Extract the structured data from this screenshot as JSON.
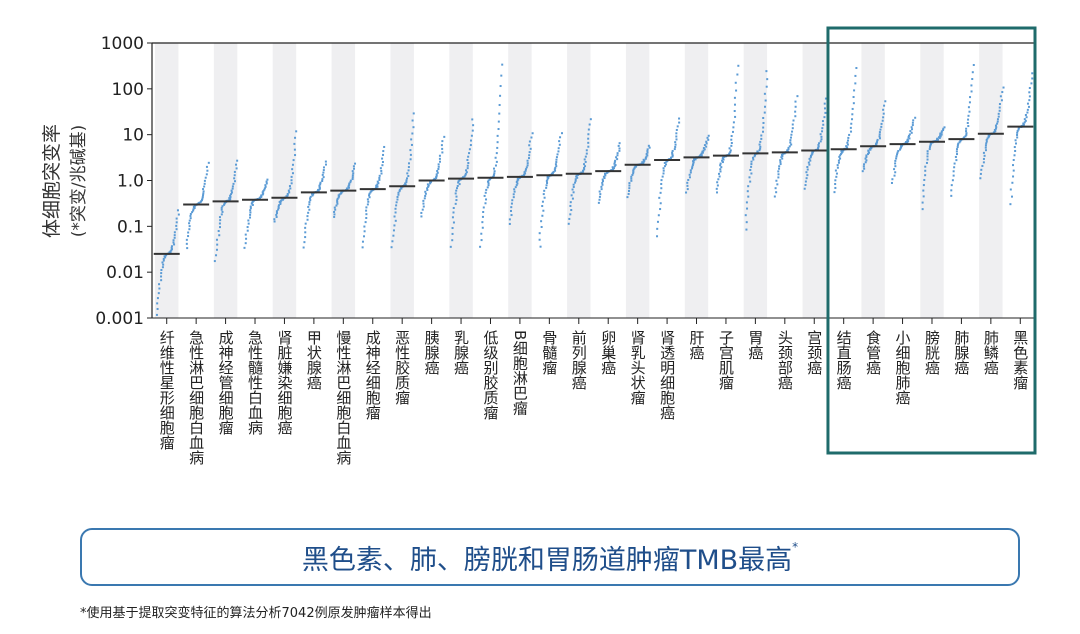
{
  "chart_data": {
    "type": "scatter",
    "ylabel": "体细胞突变率",
    "ylabel_sub": "(*突变/兆碱基)",
    "yscale": "log",
    "ylim": [
      0.001,
      1000
    ],
    "yticks": [
      "0.001",
      "0.01",
      "0.1",
      "1.0",
      "10",
      "100",
      "1000"
    ],
    "yticks_values": [
      0.001,
      0.01,
      0.1,
      1,
      10,
      100,
      1000
    ],
    "categories": [
      "纤维性星形细胞瘤",
      "急性淋巴细胞白血病",
      "成神经管细胞瘤",
      "急性髓性白血病",
      "肾脏嫌染细胞癌",
      "甲状腺癌",
      "慢性淋巴细胞白血病",
      "成神经细胞瘤",
      "恶性胶质瘤",
      "胰腺癌",
      "乳腺癌",
      "低级别胶质瘤",
      "B细胞淋巴瘤",
      "骨髓瘤",
      "前列腺癌",
      "卵巢癌",
      "肾乳头状瘤",
      "肾透明细胞癌",
      "肝癌",
      "子宫肌瘤",
      "胃癌",
      "头颈部癌",
      "宫颈癌",
      "结直肠癌",
      "食管癌",
      "小细胞肺癌",
      "膀胱癌",
      "肺腺癌",
      "肺鳞癌",
      "黑色素瘤"
    ],
    "medians": [
      0.025,
      0.3,
      0.35,
      0.38,
      0.42,
      0.55,
      0.6,
      0.65,
      0.75,
      1.0,
      1.1,
      1.15,
      1.2,
      1.3,
      1.4,
      1.6,
      2.2,
      2.8,
      3.2,
      3.5,
      3.9,
      4.1,
      4.5,
      4.8,
      5.6,
      6.2,
      7.0,
      8.0,
      10.5,
      15
    ],
    "min": [
      0.001,
      0.03,
      0.015,
      0.03,
      0.12,
      0.03,
      0.15,
      0.03,
      0.03,
      0.15,
      0.03,
      0.03,
      0.1,
      0.03,
      0.1,
      0.3,
      0.4,
      0.05,
      0.5,
      0.5,
      0.07,
      0.4,
      0.6,
      0.5,
      1.5,
      0.8,
      0.2,
      0.4,
      1.0,
      0.25
    ],
    "max": [
      0.25,
      2.7,
      3,
      1.1,
      14,
      2.8,
      2.5,
      6,
      35,
      10,
      25,
      450,
      12,
      12,
      25,
      7,
      6,
      25,
      10,
      400,
      300,
      80,
      70,
      350,
      60,
      25,
      15,
      400,
      120,
      250
    ],
    "highlight_categories": [
      "结直肠癌",
      "食管癌",
      "小细胞肺癌",
      "膀胱癌",
      "肺腺癌",
      "肺鳞癌",
      "黑色素瘤"
    ],
    "grid": false,
    "colors": {
      "points": "#5b9bd5",
      "median": "#333333",
      "band": "#efeff1",
      "highlight": "#1f6b6b"
    }
  },
  "banner": {
    "text": "黑色素、肺、膀胱和胃肠道肿瘤TMB最高",
    "mark": "*"
  },
  "footnote": "*使用基于提取突变特征的算法分析7042例原发肿瘤样本得出"
}
